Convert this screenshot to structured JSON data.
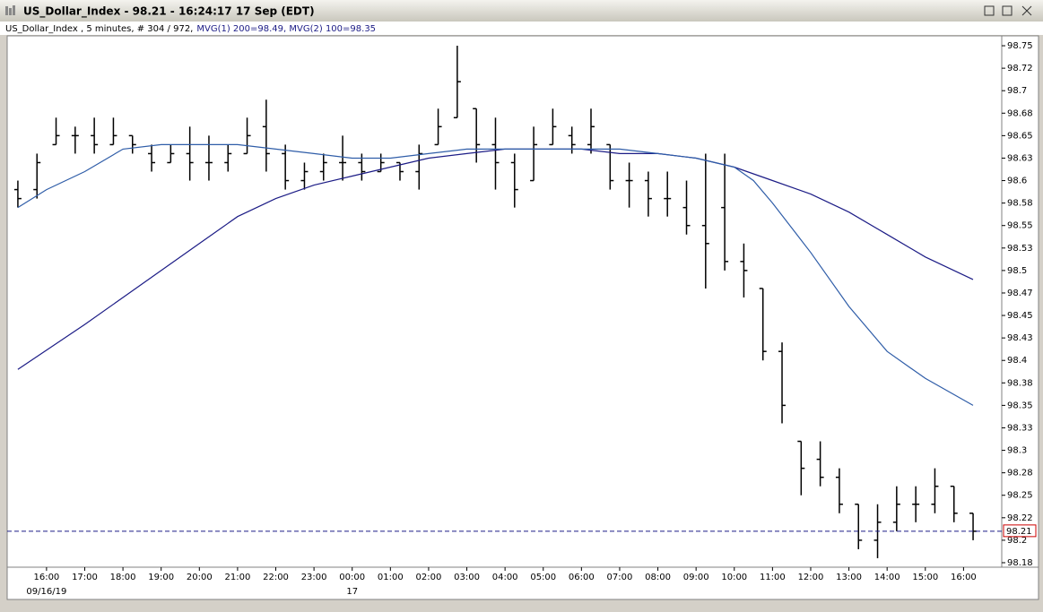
{
  "window_title": "US_Dollar_Index - 98.21 - 16:24:17  17 Sep (EDT)",
  "chart_data": {
    "type": "ohlc",
    "info_prefix": "US_Dollar_Index , 5 minutes, # 304 / 972,",
    "info_indicators": "MVG(1) 200=98.49, MVG(2) 100=98.35",
    "xlim": [
      14.97,
      41.0
    ],
    "ylim": [
      98.17,
      98.761
    ],
    "xticks": [
      {
        "value": 16,
        "label": "16:00"
      },
      {
        "value": 17,
        "label": "17:00"
      },
      {
        "value": 18,
        "label": "18:00"
      },
      {
        "value": 19,
        "label": "19:00"
      },
      {
        "value": 20,
        "label": "20:00"
      },
      {
        "value": 21,
        "label": "21:00"
      },
      {
        "value": 22,
        "label": "22:00"
      },
      {
        "value": 23,
        "label": "23:00"
      },
      {
        "value": 24,
        "label": "00:00"
      },
      {
        "value": 25,
        "label": "01:00"
      },
      {
        "value": 26,
        "label": "02:00"
      },
      {
        "value": 27,
        "label": "03:00"
      },
      {
        "value": 28,
        "label": "04:00"
      },
      {
        "value": 29,
        "label": "05:00"
      },
      {
        "value": 30,
        "label": "06:00"
      },
      {
        "value": 31,
        "label": "07:00"
      },
      {
        "value": 32,
        "label": "08:00"
      },
      {
        "value": 33,
        "label": "09:00"
      },
      {
        "value": 34,
        "label": "10:00"
      },
      {
        "value": 35,
        "label": "11:00"
      },
      {
        "value": 36,
        "label": "12:00"
      },
      {
        "value": 37,
        "label": "13:00"
      },
      {
        "value": 38,
        "label": "14:00"
      },
      {
        "value": 39,
        "label": "15:00"
      },
      {
        "value": 40,
        "label": "16:00"
      }
    ],
    "date_labels": [
      {
        "value": 16,
        "label": "09/16/19"
      },
      {
        "value": 24,
        "label": "17"
      }
    ],
    "yticks": [
      98.75,
      {
        "value": 98.725,
        "label": "98.72"
      },
      98.7,
      {
        "value": 98.675,
        "label": "98.68"
      },
      98.65,
      {
        "value": 98.625,
        "label": "98.63"
      },
      98.6,
      {
        "value": 98.575,
        "label": "98.58"
      },
      98.55,
      {
        "value": 98.525,
        "label": "98.53"
      },
      98.5,
      {
        "value": 98.475,
        "label": "98.47"
      },
      98.45,
      {
        "value": 98.425,
        "label": "98.43"
      },
      98.4,
      {
        "value": 98.375,
        "label": "98.38"
      },
      98.35,
      {
        "value": 98.325,
        "label": "98.33"
      },
      98.3,
      {
        "value": 98.275,
        "label": "98.28"
      },
      98.25,
      {
        "value": 98.225,
        "label": "98.22"
      },
      98.2,
      {
        "value": 98.175,
        "label": "98.18"
      }
    ],
    "last_price": 98.21,
    "series": [
      {
        "type": "ohlc",
        "color": "#000000",
        "x": [
          15.25,
          15.75,
          16.25,
          16.75,
          17.25,
          17.75,
          18.25,
          18.75,
          19.25,
          19.75,
          20.25,
          20.75,
          21.25,
          21.75,
          22.25,
          22.75,
          23.25,
          23.75,
          24.25,
          24.75,
          25.25,
          25.75,
          26.25,
          26.75,
          27.25,
          27.75,
          28.25,
          28.75,
          29.25,
          29.75,
          30.25,
          30.75,
          31.25,
          31.75,
          32.25,
          32.75,
          33.25,
          33.75,
          34.25,
          34.75,
          35.25,
          35.75,
          36.25,
          36.75,
          37.25,
          37.75,
          38.25,
          38.75,
          39.25,
          39.75,
          40.25
        ],
        "open": [
          98.59,
          98.59,
          98.64,
          98.65,
          98.65,
          98.64,
          98.65,
          98.63,
          98.62,
          98.63,
          98.62,
          98.62,
          98.63,
          98.66,
          98.63,
          98.6,
          98.61,
          98.62,
          98.62,
          98.61,
          98.62,
          98.61,
          98.64,
          98.67,
          98.68,
          98.64,
          98.62,
          98.6,
          98.64,
          98.65,
          98.64,
          98.64,
          98.6,
          98.6,
          98.58,
          98.57,
          98.55,
          98.57,
          98.51,
          98.48,
          98.41,
          98.31,
          98.29,
          98.27,
          98.24,
          98.2,
          98.22,
          98.24,
          98.24,
          98.26,
          98.23
        ],
        "high": [
          98.6,
          98.63,
          98.67,
          98.66,
          98.67,
          98.67,
          98.65,
          98.64,
          98.64,
          98.66,
          98.65,
          98.64,
          98.67,
          98.69,
          98.64,
          98.62,
          98.63,
          98.65,
          98.63,
          98.63,
          98.62,
          98.64,
          98.68,
          98.75,
          98.68,
          98.67,
          98.63,
          98.66,
          98.68,
          98.66,
          98.68,
          98.64,
          98.62,
          98.61,
          98.61,
          98.6,
          98.63,
          98.63,
          98.53,
          98.48,
          98.42,
          98.31,
          98.31,
          98.28,
          98.24,
          98.24,
          98.26,
          98.26,
          98.28,
          98.26,
          98.23
        ],
        "low": [
          98.57,
          98.58,
          98.64,
          98.63,
          98.63,
          98.64,
          98.63,
          98.61,
          98.62,
          98.6,
          98.6,
          98.61,
          98.63,
          98.61,
          98.59,
          98.59,
          98.6,
          98.6,
          98.6,
          98.61,
          98.6,
          98.59,
          98.64,
          98.67,
          98.62,
          98.59,
          98.57,
          98.6,
          98.64,
          98.63,
          98.63,
          98.59,
          98.57,
          98.56,
          98.56,
          98.54,
          98.48,
          98.5,
          98.47,
          98.4,
          98.33,
          98.25,
          98.26,
          98.23,
          98.19,
          98.18,
          98.21,
          98.22,
          98.23,
          98.22,
          98.2
        ],
        "close": [
          98.58,
          98.62,
          98.65,
          98.65,
          98.64,
          98.65,
          98.64,
          98.62,
          98.63,
          98.62,
          98.62,
          98.63,
          98.65,
          98.63,
          98.6,
          98.61,
          98.62,
          98.62,
          98.61,
          98.62,
          98.61,
          98.63,
          98.66,
          98.71,
          98.64,
          98.62,
          98.59,
          98.64,
          98.66,
          98.64,
          98.66,
          98.6,
          98.6,
          98.58,
          98.58,
          98.55,
          98.53,
          98.51,
          98.5,
          98.41,
          98.35,
          98.28,
          98.27,
          98.24,
          98.2,
          98.22,
          98.24,
          98.24,
          98.26,
          98.23,
          98.21
        ]
      },
      {
        "type": "line",
        "color": "#1c1c86",
        "x": [
          15.25,
          17,
          18,
          19,
          20,
          21,
          22,
          23,
          24,
          25,
          26,
          27,
          28,
          29,
          30,
          31,
          32,
          33,
          34,
          35,
          36,
          37,
          38,
          39,
          40.25
        ],
        "values": [
          98.39,
          98.44,
          98.47,
          98.5,
          98.53,
          98.56,
          98.58,
          98.595,
          98.605,
          98.615,
          98.625,
          98.63,
          98.635,
          98.635,
          98.635,
          98.63,
          98.63,
          98.625,
          98.615,
          98.6,
          98.585,
          98.565,
          98.54,
          98.515,
          98.49
        ]
      },
      {
        "type": "line",
        "color": "#2f5da8",
        "x": [
          15.25,
          16,
          17,
          18,
          19,
          20,
          21,
          22,
          23,
          24,
          25,
          26,
          27,
          28,
          29,
          30,
          31,
          32,
          33,
          34,
          34.5,
          35,
          36,
          37,
          38,
          39,
          40.25
        ],
        "values": [
          98.57,
          98.59,
          98.61,
          98.635,
          98.64,
          98.64,
          98.64,
          98.635,
          98.63,
          98.625,
          98.625,
          98.63,
          98.635,
          98.635,
          98.635,
          98.635,
          98.635,
          98.63,
          98.625,
          98.615,
          98.6,
          98.575,
          98.52,
          98.46,
          98.41,
          98.38,
          98.35
        ]
      }
    ]
  }
}
